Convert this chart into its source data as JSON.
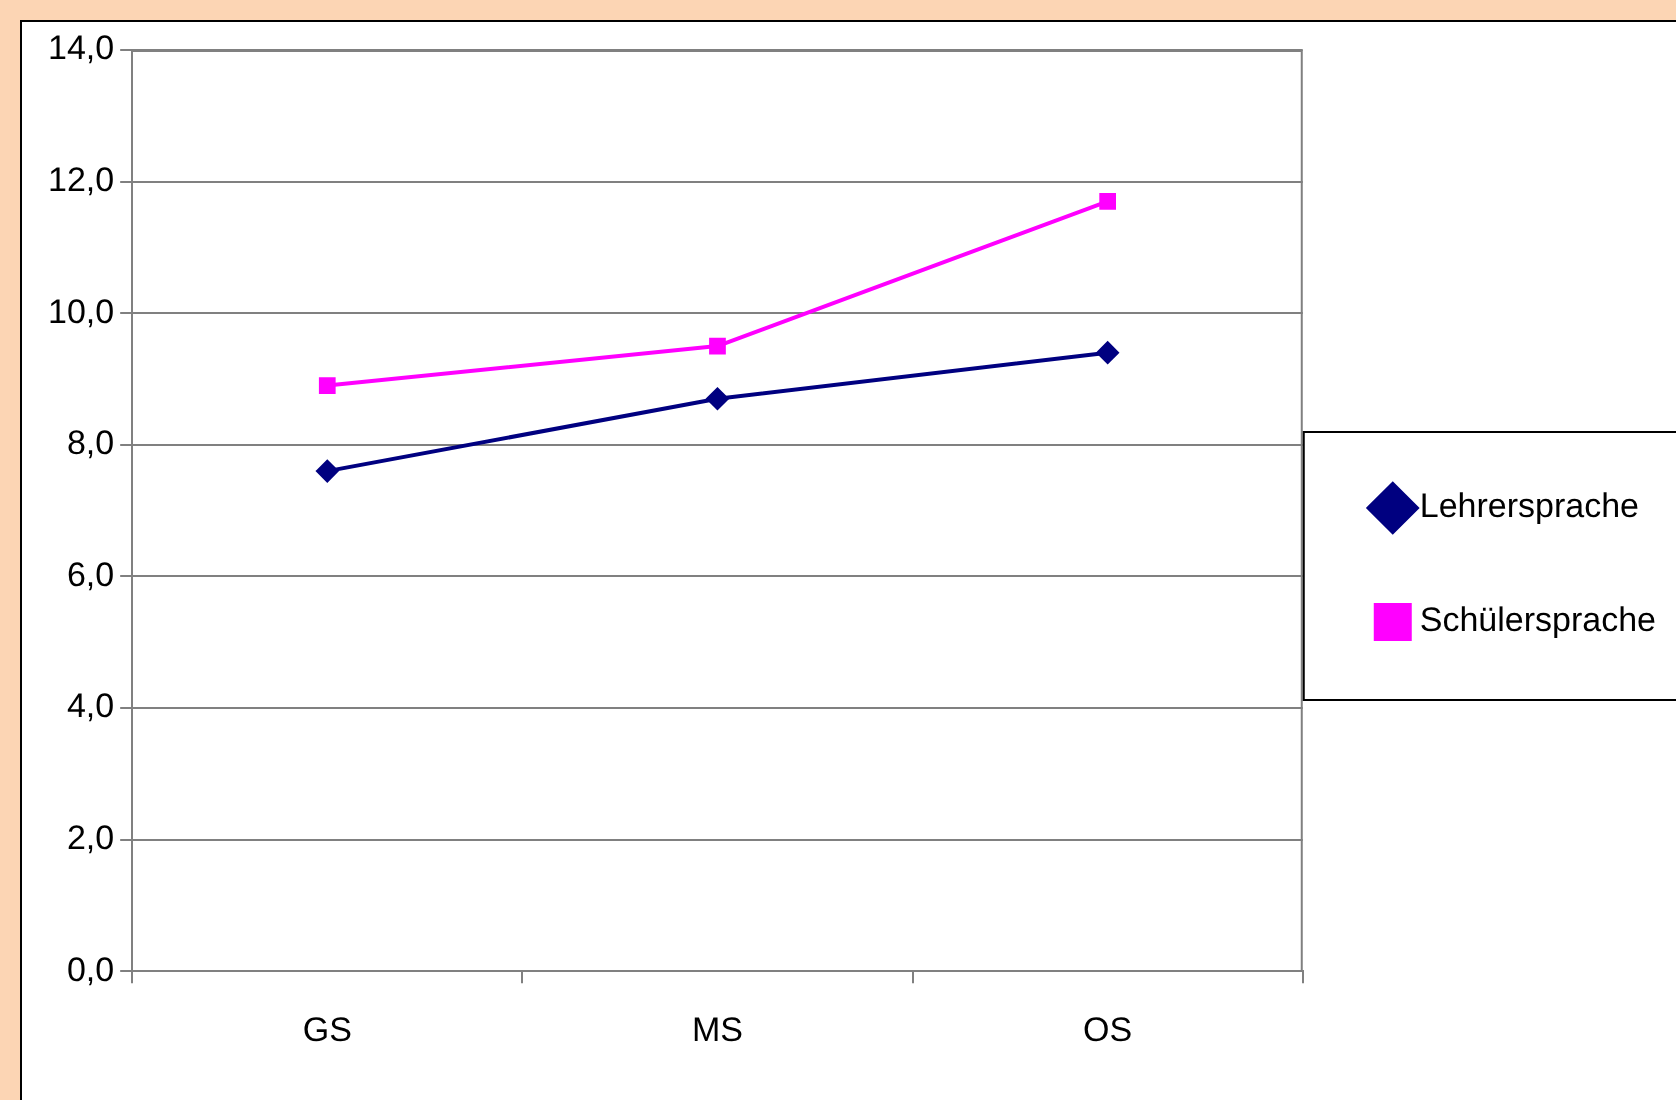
{
  "chart_data": {
    "type": "line",
    "categories": [
      "GS",
      "MS",
      "OS"
    ],
    "series": [
      {
        "name": "Lehrersprache",
        "color": "#000080",
        "marker": "diamond",
        "values": [
          7.6,
          8.7,
          9.4
        ]
      },
      {
        "name": "Schülersprache",
        "color": "#ff00ff",
        "marker": "square",
        "values": [
          8.9,
          9.5,
          11.7
        ]
      }
    ],
    "ylim": [
      0,
      14
    ],
    "yticks": [
      {
        "value": 0,
        "label": "0,0"
      },
      {
        "value": 2,
        "label": "2,0"
      },
      {
        "value": 4,
        "label": "4,0"
      },
      {
        "value": 6,
        "label": "6,0"
      },
      {
        "value": 8,
        "label": "8,0"
      },
      {
        "value": 10,
        "label": "10,0"
      },
      {
        "value": 12,
        "label": "12,0"
      },
      {
        "value": 14,
        "label": "14,0"
      }
    ],
    "grid": "y",
    "legend": "right",
    "line_style": "solid"
  }
}
